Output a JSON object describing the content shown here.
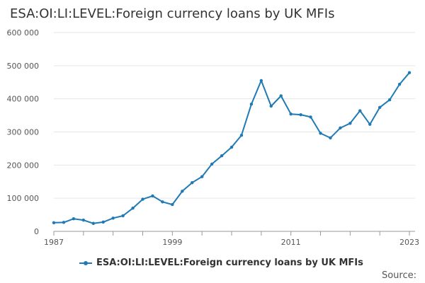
{
  "title": "ESA:OI:LI:LEVEL:Foreign currency loans by UK MFIs",
  "source_label": "Source:",
  "colors": {
    "series": "#1f7ab5",
    "grid": "#e6e6e6",
    "axis": "#999999"
  },
  "chart_data": {
    "type": "line",
    "title": "ESA:OI:LI:LEVEL:Foreign currency loans by UK MFIs",
    "xlabel": "",
    "ylabel": "",
    "ylim": [
      0,
      600000
    ],
    "xlim": [
      1987,
      2023
    ],
    "yticks": [
      0,
      100000,
      200000,
      300000,
      400000,
      500000,
      600000
    ],
    "ytick_labels": [
      "0",
      "100 000",
      "200 000",
      "300 000",
      "400 000",
      "500 000",
      "600 000"
    ],
    "xticks": [
      1987,
      1999,
      2011,
      2023
    ],
    "xtick_labels": [
      "1987",
      "1999",
      "2011",
      "2023"
    ],
    "grid": "horizontal",
    "legend": "bottom",
    "series": [
      {
        "name": "ESA:OI:LI:LEVEL:Foreign currency loans by UK MFIs",
        "x": [
          1987,
          1988,
          1989,
          1990,
          1991,
          1992,
          1993,
          1994,
          1995,
          1996,
          1997,
          1998,
          1999,
          2000,
          2001,
          2002,
          2003,
          2004,
          2005,
          2006,
          2007,
          2008,
          2009,
          2010,
          2011,
          2012,
          2013,
          2014,
          2015,
          2016,
          2017,
          2018,
          2019,
          2020,
          2021,
          2022,
          2023
        ],
        "values": [
          26000,
          27000,
          38000,
          34000,
          24000,
          28000,
          40000,
          47000,
          70000,
          97000,
          107000,
          89000,
          81000,
          121000,
          147000,
          165000,
          203000,
          228000,
          254000,
          290000,
          384000,
          455000,
          378000,
          409000,
          354000,
          352000,
          345000,
          296000,
          282000,
          312000,
          326000,
          364000,
          323000,
          374000,
          397000,
          444000,
          479000
        ]
      }
    ]
  }
}
